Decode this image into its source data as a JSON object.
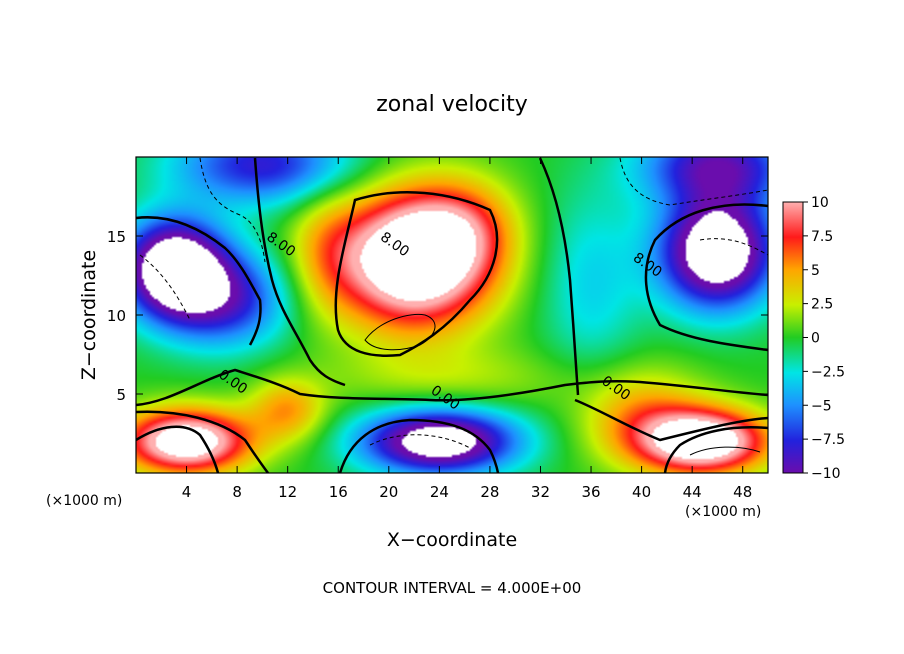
{
  "chart_data": {
    "type": "heatmap",
    "title": "zonal velocity",
    "xlabel": "X−coordinate",
    "ylabel": "Z−coordinate",
    "x_unit": "(×1000 m)",
    "y_unit": "(×1000 m)",
    "xlim": [
      0,
      50
    ],
    "ylim": [
      0,
      20
    ],
    "x_ticks": [
      4,
      8,
      12,
      16,
      20,
      24,
      28,
      32,
      36,
      40,
      44,
      48
    ],
    "y_ticks": [
      5,
      10,
      15
    ],
    "colorbar": {
      "range": [
        -10,
        10
      ],
      "ticks": [
        10,
        7.5,
        5,
        2.5,
        0,
        -2.5,
        -5,
        -7.5,
        -10
      ],
      "tick_labels": [
        "10",
        "7.5",
        "5",
        "2.5",
        "0",
        "−2.5",
        "−5",
        "−7.5",
        "−10"
      ]
    },
    "contour_labels": [
      {
        "text": "8.00",
        "x": 11.5,
        "y": 14.5
      },
      {
        "text": "8.00",
        "x": 20.5,
        "y": 14.5
      },
      {
        "text": "8.00",
        "x": 40.5,
        "y": 13.2
      },
      {
        "text": "0.00",
        "x": 7.7,
        "y": 5.8
      },
      {
        "text": "0.00",
        "x": 24.5,
        "y": 4.8
      },
      {
        "text": "0.00",
        "x": 38.0,
        "y": 5.4
      }
    ],
    "footnote": "CONTOUR INTERVAL = 4.000E+00"
  }
}
